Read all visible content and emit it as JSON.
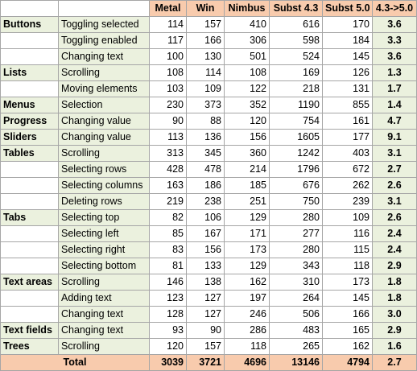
{
  "headers": [
    "",
    "",
    "Metal",
    "Win",
    "Nimbus",
    "Subst 4.3",
    "Subst 5.0",
    "4.3->5.0"
  ],
  "rows": [
    {
      "cat": "Buttons",
      "act": "Toggling selected",
      "v": [
        "114",
        "157",
        "410",
        "616",
        "170"
      ],
      "r": "3.6"
    },
    {
      "cat": "",
      "act": "Toggling enabled",
      "v": [
        "117",
        "166",
        "306",
        "598",
        "184"
      ],
      "r": "3.3"
    },
    {
      "cat": "",
      "act": "Changing text",
      "v": [
        "100",
        "130",
        "501",
        "524",
        "145"
      ],
      "r": "3.6"
    },
    {
      "cat": "Lists",
      "act": "Scrolling",
      "v": [
        "108",
        "114",
        "108",
        "169",
        "126"
      ],
      "r": "1.3"
    },
    {
      "cat": "",
      "act": "Moving elements",
      "v": [
        "103",
        "109",
        "122",
        "218",
        "131"
      ],
      "r": "1.7"
    },
    {
      "cat": "Menus",
      "act": "Selection",
      "v": [
        "230",
        "373",
        "352",
        "1190",
        "855"
      ],
      "r": "1.4"
    },
    {
      "cat": "Progress",
      "act": "Changing value",
      "v": [
        "90",
        "88",
        "120",
        "754",
        "161"
      ],
      "r": "4.7"
    },
    {
      "cat": "Sliders",
      "act": "Changing value",
      "v": [
        "113",
        "136",
        "156",
        "1605",
        "177"
      ],
      "r": "9.1"
    },
    {
      "cat": "Tables",
      "act": "Scrolling",
      "v": [
        "313",
        "345",
        "360",
        "1242",
        "403"
      ],
      "r": "3.1"
    },
    {
      "cat": "",
      "act": "Selecting rows",
      "v": [
        "428",
        "478",
        "214",
        "1796",
        "672"
      ],
      "r": "2.7"
    },
    {
      "cat": "",
      "act": "Selecting columns",
      "v": [
        "163",
        "186",
        "185",
        "676",
        "262"
      ],
      "r": "2.6"
    },
    {
      "cat": "",
      "act": "Deleting rows",
      "v": [
        "219",
        "238",
        "251",
        "750",
        "239"
      ],
      "r": "3.1"
    },
    {
      "cat": "Tabs",
      "act": "Selecting top",
      "v": [
        "82",
        "106",
        "129",
        "280",
        "109"
      ],
      "r": "2.6"
    },
    {
      "cat": "",
      "act": "Selecting left",
      "v": [
        "85",
        "167",
        "171",
        "277",
        "116"
      ],
      "r": "2.4"
    },
    {
      "cat": "",
      "act": "Selecting right",
      "v": [
        "83",
        "156",
        "173",
        "280",
        "115"
      ],
      "r": "2.4"
    },
    {
      "cat": "",
      "act": "Selecting bottom",
      "v": [
        "81",
        "133",
        "129",
        "343",
        "118"
      ],
      "r": "2.9"
    },
    {
      "cat": "Text areas",
      "act": "Scrolling",
      "v": [
        "146",
        "138",
        "162",
        "310",
        "173"
      ],
      "r": "1.8"
    },
    {
      "cat": "",
      "act": "Adding text",
      "v": [
        "123",
        "127",
        "197",
        "264",
        "145"
      ],
      "r": "1.8"
    },
    {
      "cat": "",
      "act": "Changing text",
      "v": [
        "128",
        "127",
        "246",
        "506",
        "166"
      ],
      "r": "3.0"
    },
    {
      "cat": "Text fields",
      "act": "Changing text",
      "v": [
        "93",
        "90",
        "286",
        "483",
        "165"
      ],
      "r": "2.9"
    },
    {
      "cat": "Trees",
      "act": "Scrolling",
      "v": [
        "120",
        "157",
        "118",
        "265",
        "162"
      ],
      "r": "1.6"
    }
  ],
  "total": {
    "label": "Total",
    "v": [
      "3039",
      "3721",
      "4696",
      "13146",
      "4794"
    ],
    "r": "2.7"
  },
  "colors": {
    "header_bg": "#f8cbad",
    "label_bg": "#ebf1de",
    "grid": "#a6a6a6"
  }
}
